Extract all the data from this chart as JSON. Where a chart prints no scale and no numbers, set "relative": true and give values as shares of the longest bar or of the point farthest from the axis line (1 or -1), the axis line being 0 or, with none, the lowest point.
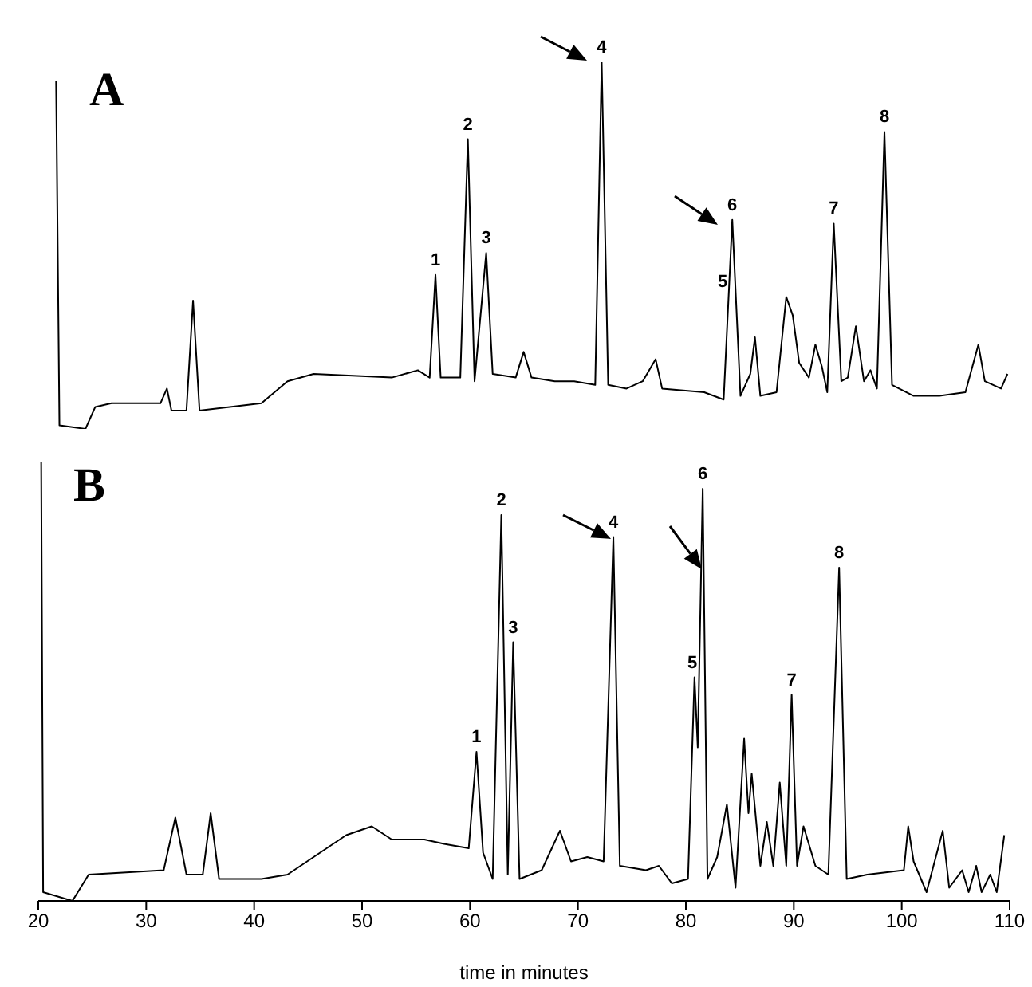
{
  "chart_data": [
    {
      "type": "line",
      "relative": true,
      "color": "#000000",
      "marker": "none",
      "line_style": "solid",
      "grid": false,
      "legend": false,
      "tick_labels": false,
      "xlim": [
        20,
        110
      ],
      "x": [
        21.65,
        21.96,
        24.37,
        25.28,
        26.79,
        31.32,
        31.92,
        32.34,
        33.73,
        34.34,
        34.94,
        40.68,
        43.09,
        45.51,
        52.75,
        55.17,
        56.26,
        56.8,
        57.28,
        59.1,
        59.8,
        60.42,
        61.5,
        62.1,
        64.23,
        64.97,
        65.7,
        67.85,
        69.65,
        71.6,
        72.2,
        72.8,
        74.5,
        76.0,
        77.2,
        77.8,
        81.7,
        83.5,
        84.3,
        85.06,
        85.97,
        86.4,
        86.9,
        88.4,
        89.3,
        89.9,
        90.5,
        91.4,
        92.0,
        92.6,
        93.1,
        93.7,
        94.4,
        95.0,
        95.75,
        96.5,
        97.1,
        97.7,
        98.4,
        99.1,
        101.1,
        103.5,
        105.9,
        107.1,
        107.7,
        109.2,
        109.8
      ],
      "values": [
        0.95,
        0.01,
        0,
        0.06,
        0.07,
        0.07,
        0.11,
        0.05,
        0.05,
        0.35,
        0.05,
        0.07,
        0.13,
        0.15,
        0.14,
        0.16,
        0.14,
        0.42,
        0.14,
        0.14,
        0.79,
        0.13,
        0.48,
        0.15,
        0.14,
        0.21,
        0.14,
        0.13,
        0.13,
        0.12,
        1,
        0.12,
        0.11,
        0.13,
        0.19,
        0.11,
        0.1,
        0.08,
        0.57,
        0.09,
        0.15,
        0.25,
        0.09,
        0.1,
        0.36,
        0.31,
        0.18,
        0.14,
        0.23,
        0.17,
        0.1,
        0.56,
        0.13,
        0.14,
        0.28,
        0.13,
        0.16,
        0.11,
        0.81,
        0.12,
        0.09,
        0.09,
        0.1,
        0.23,
        0.13,
        0.11,
        0.15
      ],
      "annotations": [
        "A",
        {
          "text": "1",
          "x": 56.8,
          "y": 0.42
        },
        {
          "text": "2",
          "x": 59.8,
          "y": 0.79
        },
        {
          "text": "3",
          "x": 61.5,
          "y": 0.48
        },
        {
          "text": "4",
          "x": 72.2,
          "y": 1
        },
        {
          "text": "5",
          "x": 83.4,
          "y": 0.36
        },
        {
          "text": "6",
          "x": 84.3,
          "y": 0.57
        },
        {
          "text": "7",
          "x": 93.7,
          "y": 0.56
        },
        {
          "text": "8",
          "x": 98.4,
          "y": 0.81
        }
      ]
    },
    {
      "type": "line",
      "relative": true,
      "color": "#000000",
      "marker": "none",
      "line_style": "solid",
      "grid": false,
      "legend": false,
      "xlim": [
        20,
        110
      ],
      "xticks": [
        20,
        30,
        40,
        50,
        60,
        70,
        80,
        90,
        100,
        110
      ],
      "xlabel": "time in minutes",
      "x": [
        20.27,
        20.45,
        23.16,
        24.67,
        31.62,
        32.7,
        33.73,
        35.24,
        35.97,
        36.75,
        40.68,
        43.09,
        45.51,
        48.53,
        50.9,
        52.75,
        55.77,
        57.59,
        59.88,
        60.6,
        61.21,
        62.1,
        62.9,
        63.5,
        64.0,
        64.59,
        66.64,
        68.33,
        69.36,
        70.87,
        72.38,
        73.28,
        73.88,
        76.3,
        77.5,
        78.7,
        80.2,
        80.8,
        81.1,
        81.56,
        82.0,
        82.9,
        83.8,
        84.6,
        85.4,
        85.8,
        86.1,
        86.9,
        87.5,
        88.1,
        88.7,
        89.3,
        89.8,
        90.3,
        90.9,
        92.0,
        93.2,
        94.2,
        94.9,
        96.8,
        100.2,
        100.6,
        101.1,
        102.3,
        103.8,
        104.4,
        105.6,
        106.2,
        106.9,
        107.4,
        108.2,
        108.8,
        109.5
      ],
      "values": [
        1,
        0.02,
        0,
        0.06,
        0.07,
        0.19,
        0.06,
        0.06,
        0.2,
        0.05,
        0.05,
        0.06,
        0.1,
        0.15,
        0.17,
        0.14,
        0.14,
        0.13,
        0.12,
        0.34,
        0.11,
        0.05,
        0.88,
        0.06,
        0.59,
        0.05,
        0.07,
        0.16,
        0.09,
        0.1,
        0.09,
        0.83,
        0.08,
        0.07,
        0.08,
        0.04,
        0.05,
        0.51,
        0.35,
        0.94,
        0.05,
        0.1,
        0.22,
        0.03,
        0.37,
        0.2,
        0.29,
        0.08,
        0.18,
        0.08,
        0.27,
        0.08,
        0.47,
        0.08,
        0.17,
        0.08,
        0.06,
        0.76,
        0.05,
        0.06,
        0.07,
        0.17,
        0.09,
        0.02,
        0.16,
        0.03,
        0.07,
        0.02,
        0.08,
        0.02,
        0.06,
        0.02,
        0.15
      ],
      "annotations": [
        "B",
        {
          "text": "1",
          "x": 60.6,
          "y": 0.34
        },
        {
          "text": "2",
          "x": 62.9,
          "y": 0.88
        },
        {
          "text": "3",
          "x": 64.0,
          "y": 0.59
        },
        {
          "text": "4",
          "x": 73.28,
          "y": 0.83
        },
        {
          "text": "5",
          "x": 80.6,
          "y": 0.51
        },
        {
          "text": "6",
          "x": 81.56,
          "y": 0.94
        },
        {
          "text": "7",
          "x": 89.8,
          "y": 0.47
        },
        {
          "text": "8",
          "x": 94.2,
          "y": 0.76
        }
      ]
    }
  ]
}
